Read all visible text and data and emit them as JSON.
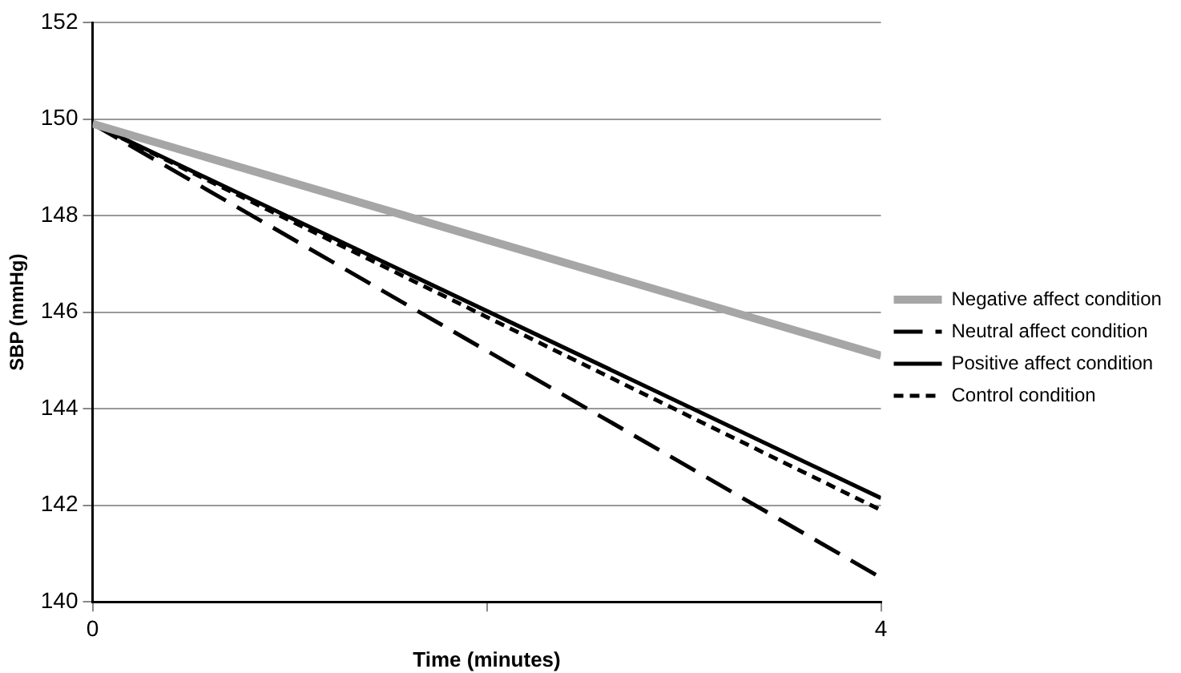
{
  "chart_data": {
    "type": "line",
    "xlabel": "Time (minutes)",
    "ylabel": "SBP (mmHg)",
    "x": [
      0,
      4
    ],
    "xlim": [
      0,
      4
    ],
    "xticks": [
      0,
      {
        "value": 2,
        "label": null
      },
      4
    ],
    "ylim": [
      140,
      152
    ],
    "yticks": [
      140,
      142,
      144,
      146,
      148,
      150,
      152
    ],
    "grid": "y",
    "legend": "right",
    "marker": "none",
    "series": [
      {
        "name": "Negative affect condition",
        "color": "#a6a6a6",
        "values": [
          149.9,
          145.1
        ],
        "line_style": "solid"
      },
      {
        "name": "Neutral affect condition",
        "color": "#000000",
        "values": [
          149.9,
          140.5
        ],
        "line_style": "dashed"
      },
      {
        "name": "Positive affect condition",
        "color": "#000000",
        "values": [
          149.9,
          142.15
        ],
        "line_style": "solid"
      },
      {
        "name": "Control condition",
        "color": "#000000",
        "values": [
          149.9,
          141.9
        ],
        "line_style": "dotted"
      }
    ]
  }
}
